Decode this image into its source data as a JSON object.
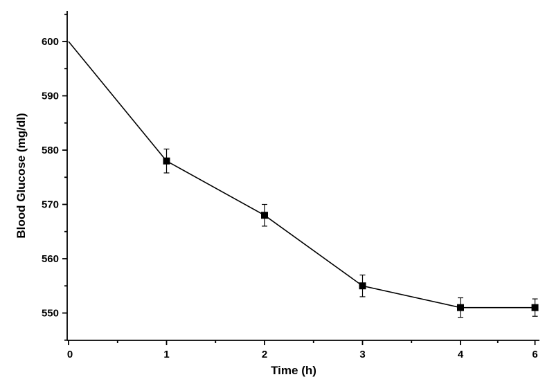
{
  "chart_data": {
    "type": "line",
    "title": "",
    "xlabel": "Time (h)",
    "ylabel": "Blood Glucose (mg/dl)",
    "xlim": [
      0,
      6
    ],
    "ylim": [
      545,
      605
    ],
    "x_ticks": [
      0,
      1,
      2,
      3,
      4,
      6
    ],
    "x_tick_labels": [
      "0",
      "1",
      "2",
      "3",
      "4",
      "6"
    ],
    "y_ticks": [
      550,
      560,
      570,
      580,
      590,
      600
    ],
    "y_tick_labels": [
      "550",
      "560",
      "570",
      "580",
      "590",
      "600"
    ],
    "grid": false,
    "legend": "none",
    "marker": "square",
    "color": "#000000",
    "series": [
      {
        "x": [
          0,
          1,
          2,
          3,
          4,
          5
        ],
        "values": [
          600,
          578,
          568,
          555,
          551,
          551
        ],
        "errors": [
          0,
          2.2,
          2.0,
          2.0,
          1.8,
          1.6
        ]
      }
    ]
  }
}
